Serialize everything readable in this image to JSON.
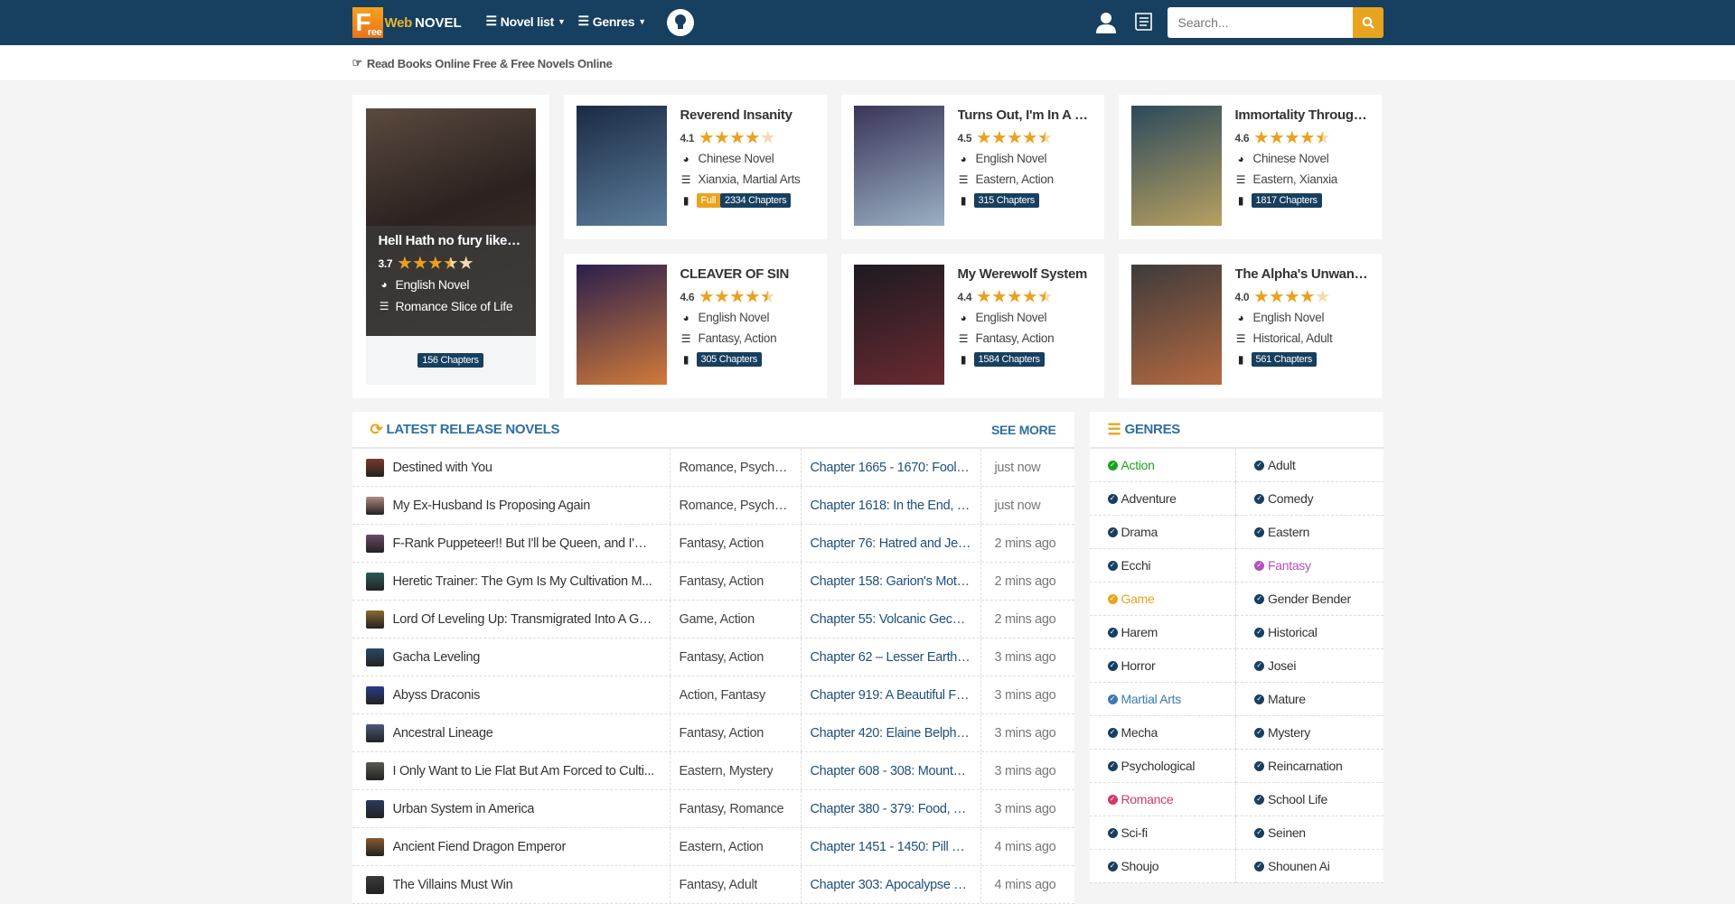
{
  "header": {
    "logo": {
      "box": "F",
      "box_small": "ree",
      "web": "Web",
      "novel": "NOVEL"
    },
    "nav": [
      {
        "label": "Novel list"
      },
      {
        "label": "Genres"
      }
    ],
    "search": {
      "placeholder": "Search...",
      "value": ""
    }
  },
  "tagline": "Read Books Online Free & Free Novels Online",
  "featured_big": {
    "title": "Hell Hath no fury like a bi...",
    "rating": 3.7,
    "rating_label": "3.7",
    "language": "English Novel",
    "genres": "Romance  Slice of Life",
    "chapters": "156 Chapters"
  },
  "featured": [
    {
      "title": "Reverend Insanity",
      "rating": 4.1,
      "rating_label": "4.1",
      "language": "Chinese Novel",
      "genres": "Xianxia, Martial Arts",
      "status": "Full",
      "chapters": "2334 Chapters",
      "c1": "#1b2a44",
      "c2": "#5b7d9b"
    },
    {
      "title": "Turns Out, I'm In A Vill...",
      "rating": 4.5,
      "rating_label": "4.5",
      "language": "English Novel",
      "genres": "Eastern, Action",
      "chapters": "315 Chapters",
      "c1": "#3a3558",
      "c2": "#9ab0c4"
    },
    {
      "title": "Immortality Through ...",
      "rating": 4.6,
      "rating_label": "4.6",
      "language": "Chinese Novel",
      "genres": "Eastern, Xianxia",
      "chapters": "1817 Chapters",
      "c1": "#2b4a5c",
      "c2": "#b8a060"
    },
    {
      "title": "CLEAVER OF SIN",
      "rating": 4.6,
      "rating_label": "4.6",
      "language": "English Novel",
      "genres": "Fantasy, Action",
      "chapters": "305 Chapters",
      "c1": "#2a1f4d",
      "c2": "#d07a3a"
    },
    {
      "title": "My Werewolf System",
      "rating": 4.4,
      "rating_label": "4.4",
      "language": "English Novel",
      "genres": "Fantasy, Action",
      "chapters": "1584 Chapters",
      "c1": "#1d1a22",
      "c2": "#6a2a30"
    },
    {
      "title": "The Alpha's Unwanted...",
      "rating": 4.0,
      "rating_label": "4.0",
      "language": "English Novel",
      "genres": "Historical, Adult",
      "chapters": "561 Chapters",
      "c1": "#3d3a3c",
      "c2": "#b46a40"
    }
  ],
  "latest": {
    "title": "Latest Release Novels",
    "see_more": "SEE MORE",
    "rows": [
      {
        "name": "Destined with You",
        "genres": "Romance, Psycholo...",
        "chapter": "Chapter 1665 - 1670: Fool fo...",
        "time": "just now"
      },
      {
        "name": "My Ex-Husband Is Proposing Again",
        "genres": "Romance, Psycholo...",
        "chapter": "Chapter 1618: In the End, It's ...",
        "time": "just now"
      },
      {
        "name": "F-Rank Puppeteer!! But I'll be Queen, and I'm ...",
        "genres": "Fantasy, Action",
        "chapter": "Chapter 76: Hatred and Jealo...",
        "time": "2 mins ago"
      },
      {
        "name": "Heretic Trainer: The Gym Is My Cultivation M...",
        "genres": "Fantasy, Action",
        "chapter": "Chapter 158: Garion's Motiva...",
        "time": "2 mins ago"
      },
      {
        "name": "Lord Of Leveling Up: Transmigrated Into A Ga...",
        "genres": "Game, Action",
        "chapter": "Chapter 55: Volcanic Gecko (...",
        "time": "2 mins ago"
      },
      {
        "name": "Gacha Leveling",
        "genres": "Fantasy, Action",
        "chapter": "Chapter 62 – Lesser Earth S...",
        "time": "3 mins ago"
      },
      {
        "name": "Abyss Draconis",
        "genres": "Action, Fantasy",
        "chapter": "Chapter 919: A Beautiful Fan...",
        "time": "3 mins ago"
      },
      {
        "name": "Ancestral Lineage",
        "genres": "Fantasy, Action",
        "chapter": "Chapter 420: Elaine Belpheg...",
        "time": "3 mins ago"
      },
      {
        "name": "I Only Want to Lie Flat But Am Forced to Culti...",
        "genres": "Eastern, Mystery",
        "chapter": "Chapter 608 - 308: Mountain ...",
        "time": "3 mins ago"
      },
      {
        "name": "Urban System in America",
        "genres": "Fantasy, Romance",
        "chapter": "Chapter 380 - 379: Food, Tra...",
        "time": "3 mins ago"
      },
      {
        "name": "Ancient Fiend Dragon Emperor",
        "genres": "Eastern, Action",
        "chapter": "Chapter 1451 - 1450: Pill Refi...",
        "time": "4 mins ago"
      },
      {
        "name": "The Villains Must Win",
        "genres": "Fantasy, Adult",
        "chapter": "Chapter 303: Apocalypse Ro...",
        "time": "4 mins ago"
      }
    ]
  },
  "genres": {
    "title": "Genres",
    "items": [
      {
        "label": "Action",
        "color": "#1aa31a"
      },
      {
        "label": "Adult"
      },
      {
        "label": "Adventure"
      },
      {
        "label": "Comedy"
      },
      {
        "label": "Drama"
      },
      {
        "label": "Eastern"
      },
      {
        "label": "Ecchi"
      },
      {
        "label": "Fantasy",
        "color": "#b44fc0"
      },
      {
        "label": "Game",
        "color": "#e9a41f"
      },
      {
        "label": "Gender Bender"
      },
      {
        "label": "Harem"
      },
      {
        "label": "Historical"
      },
      {
        "label": "Horror"
      },
      {
        "label": "Josei"
      },
      {
        "label": "Martial Arts",
        "color": "#3d7ab5"
      },
      {
        "label": "Mature"
      },
      {
        "label": "Mecha"
      },
      {
        "label": "Mystery"
      },
      {
        "label": "Psychological"
      },
      {
        "label": "Reincarnation"
      },
      {
        "label": "Romance",
        "color": "#d23b63"
      },
      {
        "label": "School Life"
      },
      {
        "label": "Sci-fi"
      },
      {
        "label": "Seinen"
      },
      {
        "label": "Shoujo"
      },
      {
        "label": "Shounen Ai"
      }
    ]
  },
  "colors": {
    "header": "#173f5f",
    "accent": "#e9a41f",
    "link": "#2f6f9f",
    "default_genre": "#173f5f"
  }
}
